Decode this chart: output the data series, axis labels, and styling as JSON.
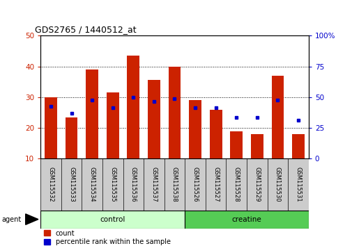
{
  "title": "GDS2765 / 1440512_at",
  "categories": [
    "GSM115532",
    "GSM115533",
    "GSM115534",
    "GSM115535",
    "GSM115536",
    "GSM115537",
    "GSM115538",
    "GSM115526",
    "GSM115527",
    "GSM115528",
    "GSM115529",
    "GSM115530",
    "GSM115531"
  ],
  "bar_values": [
    30,
    23.5,
    39,
    31.5,
    43.5,
    35.5,
    40,
    29,
    26,
    19,
    18,
    37,
    18
  ],
  "blue_values": [
    27,
    24.8,
    29,
    26.5,
    30,
    28.5,
    29.5,
    26.5,
    26.5,
    23.5,
    23.5,
    29,
    22.5
  ],
  "bar_color": "#cc2200",
  "blue_color": "#0000cc",
  "ylim_left": [
    10,
    50
  ],
  "ylim_right": [
    0,
    100
  ],
  "yticks_left": [
    10,
    20,
    30,
    40,
    50
  ],
  "yticks_right": [
    0,
    25,
    50,
    75,
    100
  ],
  "yticklabels_right": [
    "0",
    "25",
    "50",
    "75",
    "100%"
  ],
  "groups": [
    {
      "label": "control",
      "indices": [
        0,
        1,
        2,
        3,
        4,
        5,
        6
      ],
      "color": "#ccffcc"
    },
    {
      "label": "creatine",
      "indices": [
        7,
        8,
        9,
        10,
        11,
        12
      ],
      "color": "#55cc55"
    }
  ],
  "agent_label": "agent",
  "legend_count_label": "count",
  "legend_pct_label": "percentile rank within the sample",
  "bar_width": 0.6,
  "background_color": "#ffffff",
  "tick_label_color_left": "#cc2200",
  "tick_label_color_right": "#0000cc",
  "xlabel_area_color": "#cccccc"
}
